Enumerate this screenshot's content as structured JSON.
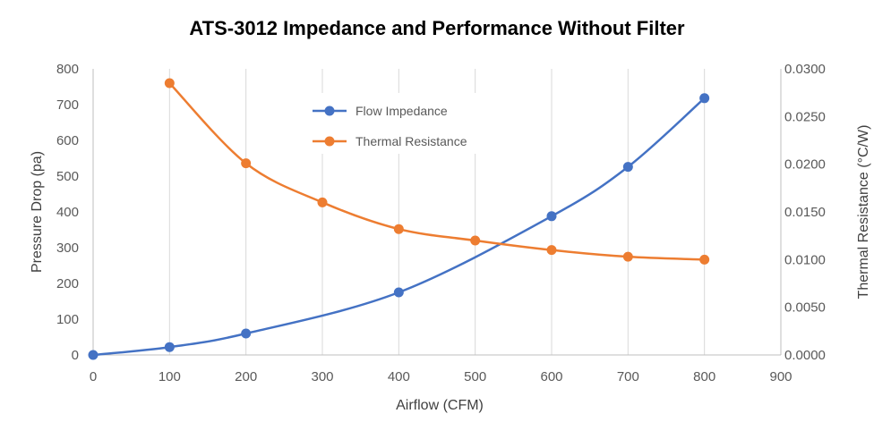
{
  "chart_data": {
    "type": "line",
    "title": "ATS-3012 Impedance and Performance Without Filter",
    "xlabel": "Airflow (CFM)",
    "ylabel": "Pressure Drop (pa)",
    "y2label": "Thermal Resistance (°C/W)",
    "xlim": [
      0,
      900
    ],
    "ylim": [
      0,
      800
    ],
    "y2lim": [
      0,
      0.03
    ],
    "x_ticks": [
      "0",
      "100",
      "200",
      "300",
      "400",
      "500",
      "600",
      "700",
      "800",
      "900"
    ],
    "y_ticks": [
      "0",
      "100",
      "200",
      "300",
      "400",
      "500",
      "600",
      "700",
      "800"
    ],
    "y2_ticks": [
      "0.0000",
      "0.0050",
      "0.0100",
      "0.0150",
      "0.0200",
      "0.0250",
      "0.0300"
    ],
    "grid": "vertical",
    "legend_position": "top-center",
    "series": [
      {
        "name": "Flow Impedance",
        "axis": "left",
        "color": "#4472C4",
        "x": [
          0,
          100,
          200,
          400,
          600,
          700,
          800
        ],
        "values": [
          0,
          22,
          60,
          175,
          388,
          526,
          718
        ]
      },
      {
        "name": "Thermal Resistance",
        "axis": "right",
        "color": "#ED7D31",
        "x": [
          100,
          200,
          300,
          400,
          500,
          600,
          700,
          800
        ],
        "values": [
          0.0285,
          0.0201,
          0.016,
          0.0132,
          0.012,
          0.011,
          0.0103,
          0.01
        ]
      }
    ]
  }
}
